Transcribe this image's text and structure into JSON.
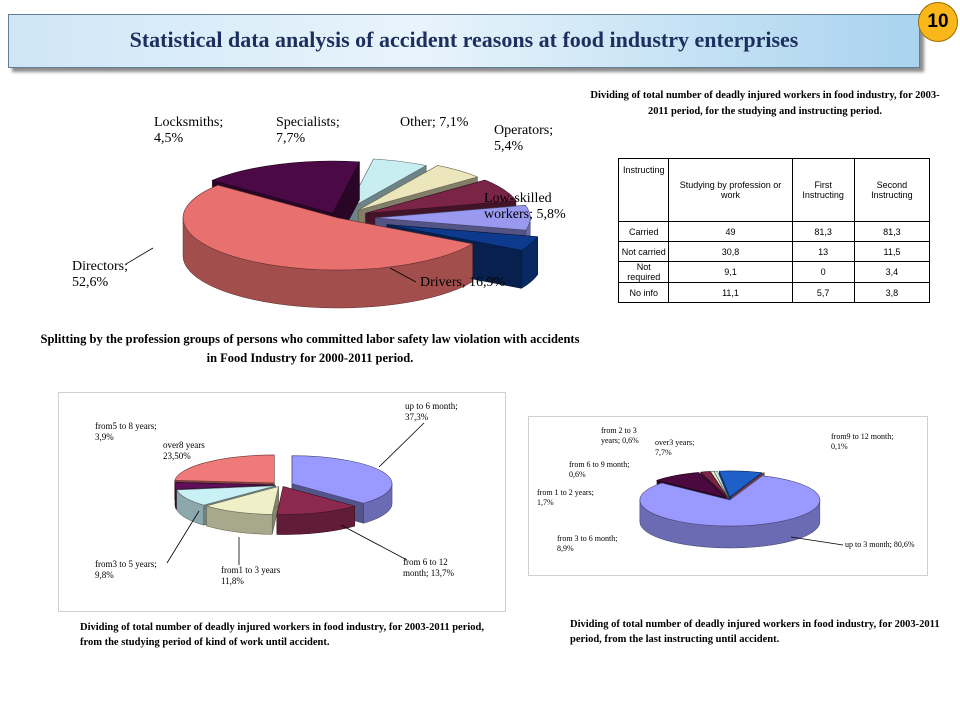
{
  "slide": {
    "title": "Statistical data analysis of  accident reasons at food industry enterprises",
    "number": "10"
  },
  "captions": {
    "profession": "Splitting  by the profession groups of persons who committed  labor safety law violation with accidents in Food Industry for 2000-2011 period.",
    "table": "Dividing of total number of deadly injured  workers in food industry, for 2003-2011 period, for the studying and instructing  period.",
    "studying": "Dividing of total number of deadly injured  workers in food industry, for 2003-2011 period, from the studying period of kind of work until accident.",
    "instructing": "Dividing of total number of deadly injured  workers in food industry, for 2003-2011 period, from the last instructing until accident."
  },
  "table": {
    "headers": [
      "Instructing",
      "Studying by profession or work",
      "First Instructing",
      "Second Instructing"
    ],
    "rows": [
      [
        "Carried",
        "49",
        "81,3",
        "81,3"
      ],
      [
        "Not carried",
        "30,8",
        "13",
        "11,5"
      ],
      [
        "Not required",
        "9,1",
        "0",
        "3,4"
      ],
      [
        "No info",
        "11,1",
        "5,7",
        "3,8"
      ]
    ]
  },
  "chart_data": [
    {
      "type": "pie",
      "categories": [
        "Directors",
        "Drivers",
        "Low-skilled workers",
        "Operators",
        "Other",
        "Specialists",
        "Locksmiths"
      ],
      "values": [
        52.6,
        16.9,
        5.8,
        5.4,
        7.1,
        7.7,
        4.5
      ],
      "labels": [
        [
          "Directors;",
          "52,6%"
        ],
        [
          "Drivers, 16,9%"
        ],
        [
          "Low-skilled",
          "workers; 5,8%"
        ],
        [
          "Operators;",
          "5,4%"
        ],
        [
          "Other; 7,1%"
        ],
        [
          "Specialists;",
          "7,7%"
        ],
        [
          "Locksmiths;",
          "4,5%"
        ]
      ],
      "colors": [
        "#e8706e",
        "#4b0a45",
        "#c8eef2",
        "#ece6bd",
        "#7a2448",
        "#9999f0",
        "#0d3a8c"
      ],
      "title": ""
    },
    {
      "type": "pie",
      "categories": [
        "up to 6  month",
        "from 6  to 12 month",
        "from1 to 3 years",
        "from3 to 5 years",
        "from5 to 8 years",
        "over8 years"
      ],
      "values": [
        37.3,
        13.7,
        11.8,
        9.8,
        3.9,
        23.5
      ],
      "labels": [
        [
          "up to 6  month;",
          "37,3%"
        ],
        [
          "from 6  to 12",
          "month; 13,7%"
        ],
        [
          "from1 to 3 years",
          "11,8%"
        ],
        [
          "from3 to 5 years;",
          "9,8%"
        ],
        [
          "from5 to 8 years;",
          "3,9%"
        ],
        [
          "over8 years",
          "23,50%"
        ]
      ],
      "colors": [
        "#9999ff",
        "#8b2a4e",
        "#f0f0c8",
        "#c8f0f5",
        "#60105a",
        "#f07a7a"
      ],
      "title": ""
    },
    {
      "type": "pie",
      "categories": [
        "up to 3 month",
        "from 3 to 6 month",
        "from 1 to 2 years",
        "from 6 to 9 month",
        "from 2 to 3 years",
        "over3 years",
        "from9 to 12 month"
      ],
      "values": [
        80.6,
        8.9,
        1.7,
        0.6,
        0.6,
        7.7,
        0.1
      ],
      "labels": [
        [
          "up to 3 month; 80,6%"
        ],
        [
          "from 3 to 6 month;",
          "8,9%"
        ],
        [
          "from 1 to 2 years;",
          "1,7%"
        ],
        [
          "from 6 to 9 month;",
          "0,6%"
        ],
        [
          "from 2 to 3",
          "years; 0,6%"
        ],
        [
          "over3 years;",
          "7,7%"
        ],
        [
          "from9 to 12 month;",
          "0,1%"
        ]
      ],
      "colors": [
        "#9999ff",
        "#4a0a40",
        "#7a2448",
        "#f0f0c8",
        "#d0f0f5",
        "#1e5fc8",
        "#f07a7a"
      ],
      "title": ""
    }
  ]
}
